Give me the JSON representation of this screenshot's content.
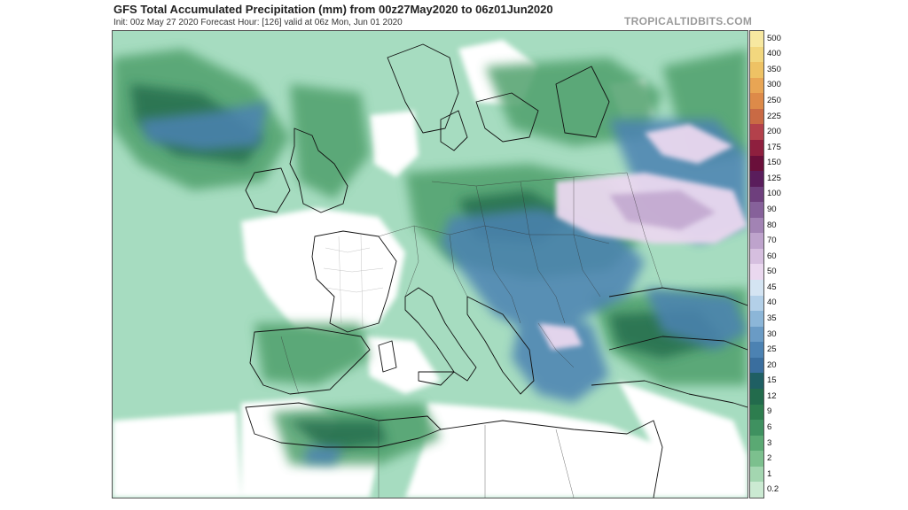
{
  "header": {
    "title": "GFS Total Accumulated Precipitation (mm) from 00z27May2020 to 06z01Jun2020",
    "subtitle": "Init: 00z May 27 2020   Forecast Hour: [126]   valid at 06z Mon, Jun 01 2020",
    "site": "TROPICALTIDBITS.COM"
  },
  "colorbar": {
    "levels": [
      {
        "label": "500",
        "color": "#f7e8a0"
      },
      {
        "label": "400",
        "color": "#f2d77e"
      },
      {
        "label": "350",
        "color": "#eec264"
      },
      {
        "label": "300",
        "color": "#e8a554"
      },
      {
        "label": "250",
        "color": "#dd8a49"
      },
      {
        "label": "225",
        "color": "#c96a44"
      },
      {
        "label": "200",
        "color": "#b3414b"
      },
      {
        "label": "175",
        "color": "#8e1f3e"
      },
      {
        "label": "150",
        "color": "#6a0f3a"
      },
      {
        "label": "125",
        "color": "#5a1d5c"
      },
      {
        "label": "100",
        "color": "#6e3f7d"
      },
      {
        "label": "90",
        "color": "#86619a"
      },
      {
        "label": "80",
        "color": "#a283b4"
      },
      {
        "label": "70",
        "color": "#bea3cc"
      },
      {
        "label": "60",
        "color": "#d6bfdf"
      },
      {
        "label": "50",
        "color": "#ead8ef"
      },
      {
        "label": "45",
        "color": "#d4e4f2"
      },
      {
        "label": "40",
        "color": "#b3d0e8"
      },
      {
        "label": "35",
        "color": "#8cb6d8"
      },
      {
        "label": "30",
        "color": "#6a9bc5"
      },
      {
        "label": "25",
        "color": "#4c82b2"
      },
      {
        "label": "20",
        "color": "#3a6e9e"
      },
      {
        "label": "15",
        "color": "#1f5f63"
      },
      {
        "label": "12",
        "color": "#226b4c"
      },
      {
        "label": "9",
        "color": "#2d7d4e"
      },
      {
        "label": "6",
        "color": "#3f9160"
      },
      {
        "label": "3",
        "color": "#5aa973"
      },
      {
        "label": "2",
        "color": "#7cc08e"
      },
      {
        "label": "1",
        "color": "#a3d6b0"
      },
      {
        "label": "0.2",
        "color": "#cbead2"
      }
    ]
  },
  "map": {
    "background_color": "#ffffff",
    "sea_light": "#a6dcc0",
    "green_mid": "#4fa06c",
    "green_dark": "#2d7d4e",
    "blue_mid": "#4c82b2",
    "purple_light": "#ead8ef"
  }
}
